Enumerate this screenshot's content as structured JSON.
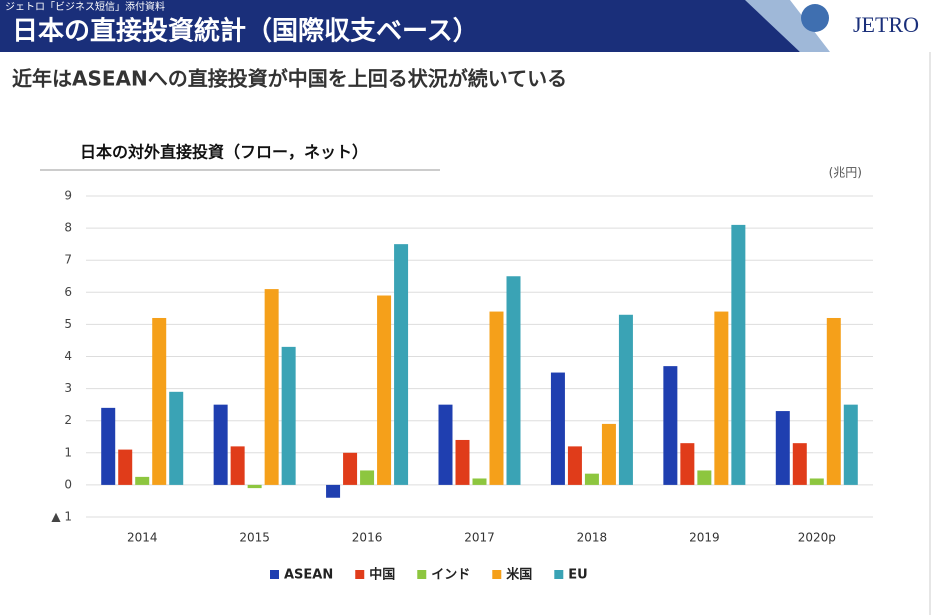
{
  "header": {
    "note": "ジェトロ「ビジネス短信」添付資料",
    "title": "日本の直接投資統計（国際収支ベース）",
    "logo": "JETRO"
  },
  "headline": "近年はASEANへの直接投資が中国を上回る状況が続いている",
  "chart_data": {
    "type": "bar",
    "title": "日本の対外直接投資（フロー，ネット）",
    "unit": "(兆円)",
    "categories": [
      "2014",
      "2015",
      "2016",
      "2017",
      "2018",
      "2019",
      "2020p"
    ],
    "series": [
      {
        "name": "ASEAN",
        "color": "#1f3fb0",
        "values": [
          2.4,
          2.5,
          -0.4,
          2.5,
          3.5,
          3.7,
          2.3
        ]
      },
      {
        "name": "中国",
        "color": "#e03c1a",
        "values": [
          1.1,
          1.2,
          1.0,
          1.4,
          1.2,
          1.3,
          1.3
        ]
      },
      {
        "name": "インド",
        "color": "#8dc63f",
        "values": [
          0.25,
          -0.1,
          0.45,
          0.2,
          0.35,
          0.45,
          0.2
        ]
      },
      {
        "name": "米国",
        "color": "#f5a01a",
        "values": [
          5.2,
          6.1,
          5.9,
          5.4,
          1.9,
          5.4,
          5.2
        ]
      },
      {
        "name": "EU",
        "color": "#3aa3b5",
        "values": [
          2.9,
          4.3,
          7.5,
          6.5,
          5.3,
          8.1,
          2.5
        ]
      }
    ],
    "ylim": [
      -1,
      9
    ],
    "yticks": [
      {
        "value": -1,
        "label": "▲ 1"
      },
      0,
      1,
      2,
      3,
      4,
      5,
      6,
      7,
      8,
      9
    ],
    "grid": true
  }
}
